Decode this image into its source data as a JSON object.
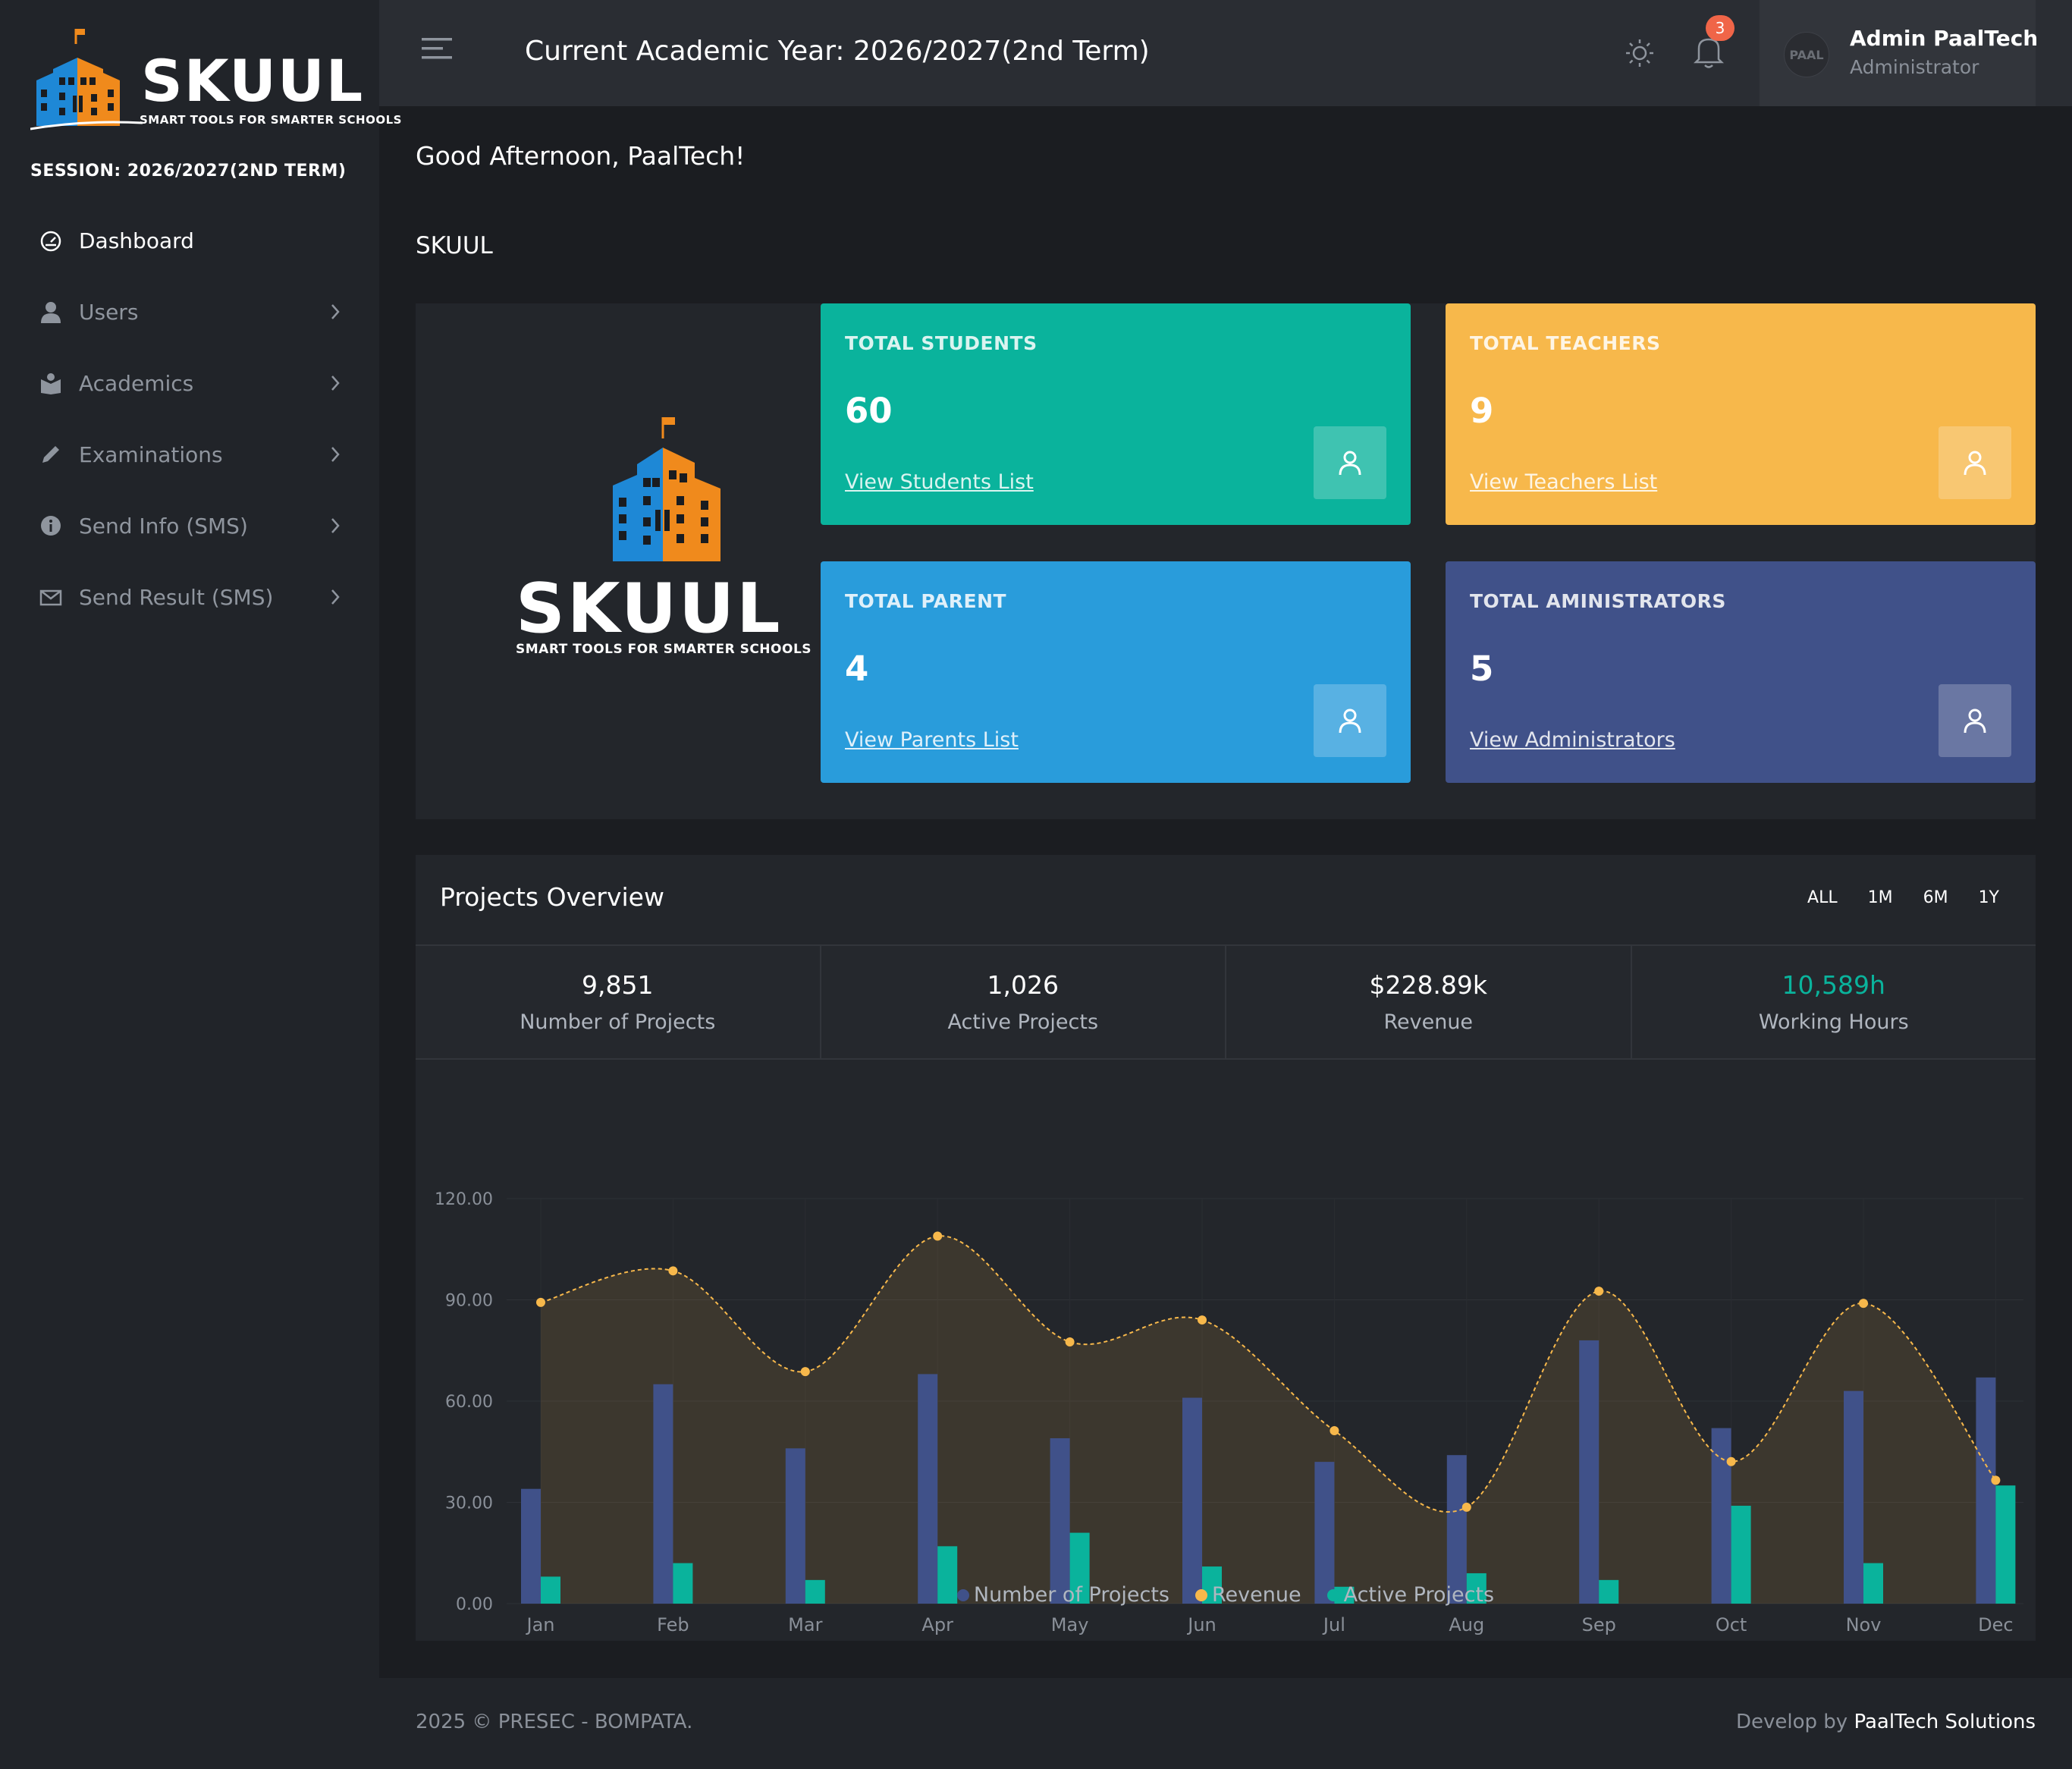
{
  "brand": {
    "name": "SKUUL",
    "tagline": "SMART TOOLS FOR SMARTER SCHOOLS"
  },
  "session": "SESSION: 2026/2027(2ND TERM)",
  "sidebar": {
    "items": [
      {
        "label": "Dashboard",
        "icon": "dashboard-icon",
        "active": true
      },
      {
        "label": "Users",
        "icon": "user-icon"
      },
      {
        "label": "Academics",
        "icon": "book-icon"
      },
      {
        "label": "Examinations",
        "icon": "pencil-icon"
      },
      {
        "label": "Send Info (SMS)",
        "icon": "info-icon"
      },
      {
        "label": "Send Result (SMS)",
        "icon": "mail-icon"
      }
    ]
  },
  "topbar": {
    "academic_year": "Current Academic Year: 2026/2027(2nd Term)",
    "notification_count": "3",
    "avatar_text": "PAAL",
    "user_name": "Admin PaalTech",
    "user_role": "Administrator"
  },
  "main": {
    "greeting": "Good Afternoon, PaalTech!",
    "school_title": "SKUUL"
  },
  "stats": [
    {
      "title": "TOTAL STUDENTS",
      "value": "60",
      "link": "View Students List",
      "color": "#0ab39c"
    },
    {
      "title": "TOTAL TEACHERS",
      "value": "9",
      "link": "View Teachers List",
      "color": "#f7b84b"
    },
    {
      "title": "TOTAL PARENT",
      "value": "4",
      "link": "View Parents List",
      "color": "#299cdb"
    },
    {
      "title": "TOTAL AMINISTRATORS",
      "value": "5",
      "link": "View Administrators",
      "color": "#405189"
    }
  ],
  "projects": {
    "title": "Projects Overview",
    "filters": [
      "ALL",
      "1M",
      "6M",
      "1Y"
    ],
    "kpis": [
      {
        "value": "9,851",
        "label": "Number of Projects"
      },
      {
        "value": "1,026",
        "label": "Active Projects"
      },
      {
        "value": "$228.89k",
        "label": "Revenue"
      },
      {
        "value": "10,589h",
        "label": "Working Hours"
      }
    ]
  },
  "chart_data": {
    "type": "bar",
    "categories": [
      "Jan",
      "Feb",
      "Mar",
      "Apr",
      "May",
      "Jun",
      "Jul",
      "Aug",
      "Sep",
      "Oct",
      "Nov",
      "Dec"
    ],
    "y_ticks": [
      "0.00",
      "30.00",
      "60.00",
      "90.00",
      "120.00"
    ],
    "ylim": [
      0,
      120
    ],
    "series": [
      {
        "name": "Number of Projects",
        "type": "bar",
        "color": "#405189",
        "values": [
          34,
          65,
          46,
          68,
          49,
          61,
          42,
          44,
          78,
          52,
          63,
          67
        ]
      },
      {
        "name": "Revenue",
        "type": "area",
        "color": "#f7b84b",
        "values": [
          89.25,
          98.58,
          68.74,
          108.87,
          77.54,
          84.03,
          51.24,
          28.57,
          92.57,
          42.08,
          88.97,
          36.55
        ]
      },
      {
        "name": "Active Projects",
        "type": "bar",
        "color": "#0ab39c",
        "values": [
          8,
          12,
          7,
          17,
          21,
          11,
          5,
          9,
          7,
          29,
          12,
          35
        ]
      }
    ],
    "legend_position": "bottom"
  },
  "footer": {
    "left": "2025 © PRESEC - BOMPATA.",
    "right_prefix": "Develop by ",
    "right_brand": "PaalTech Solutions"
  }
}
